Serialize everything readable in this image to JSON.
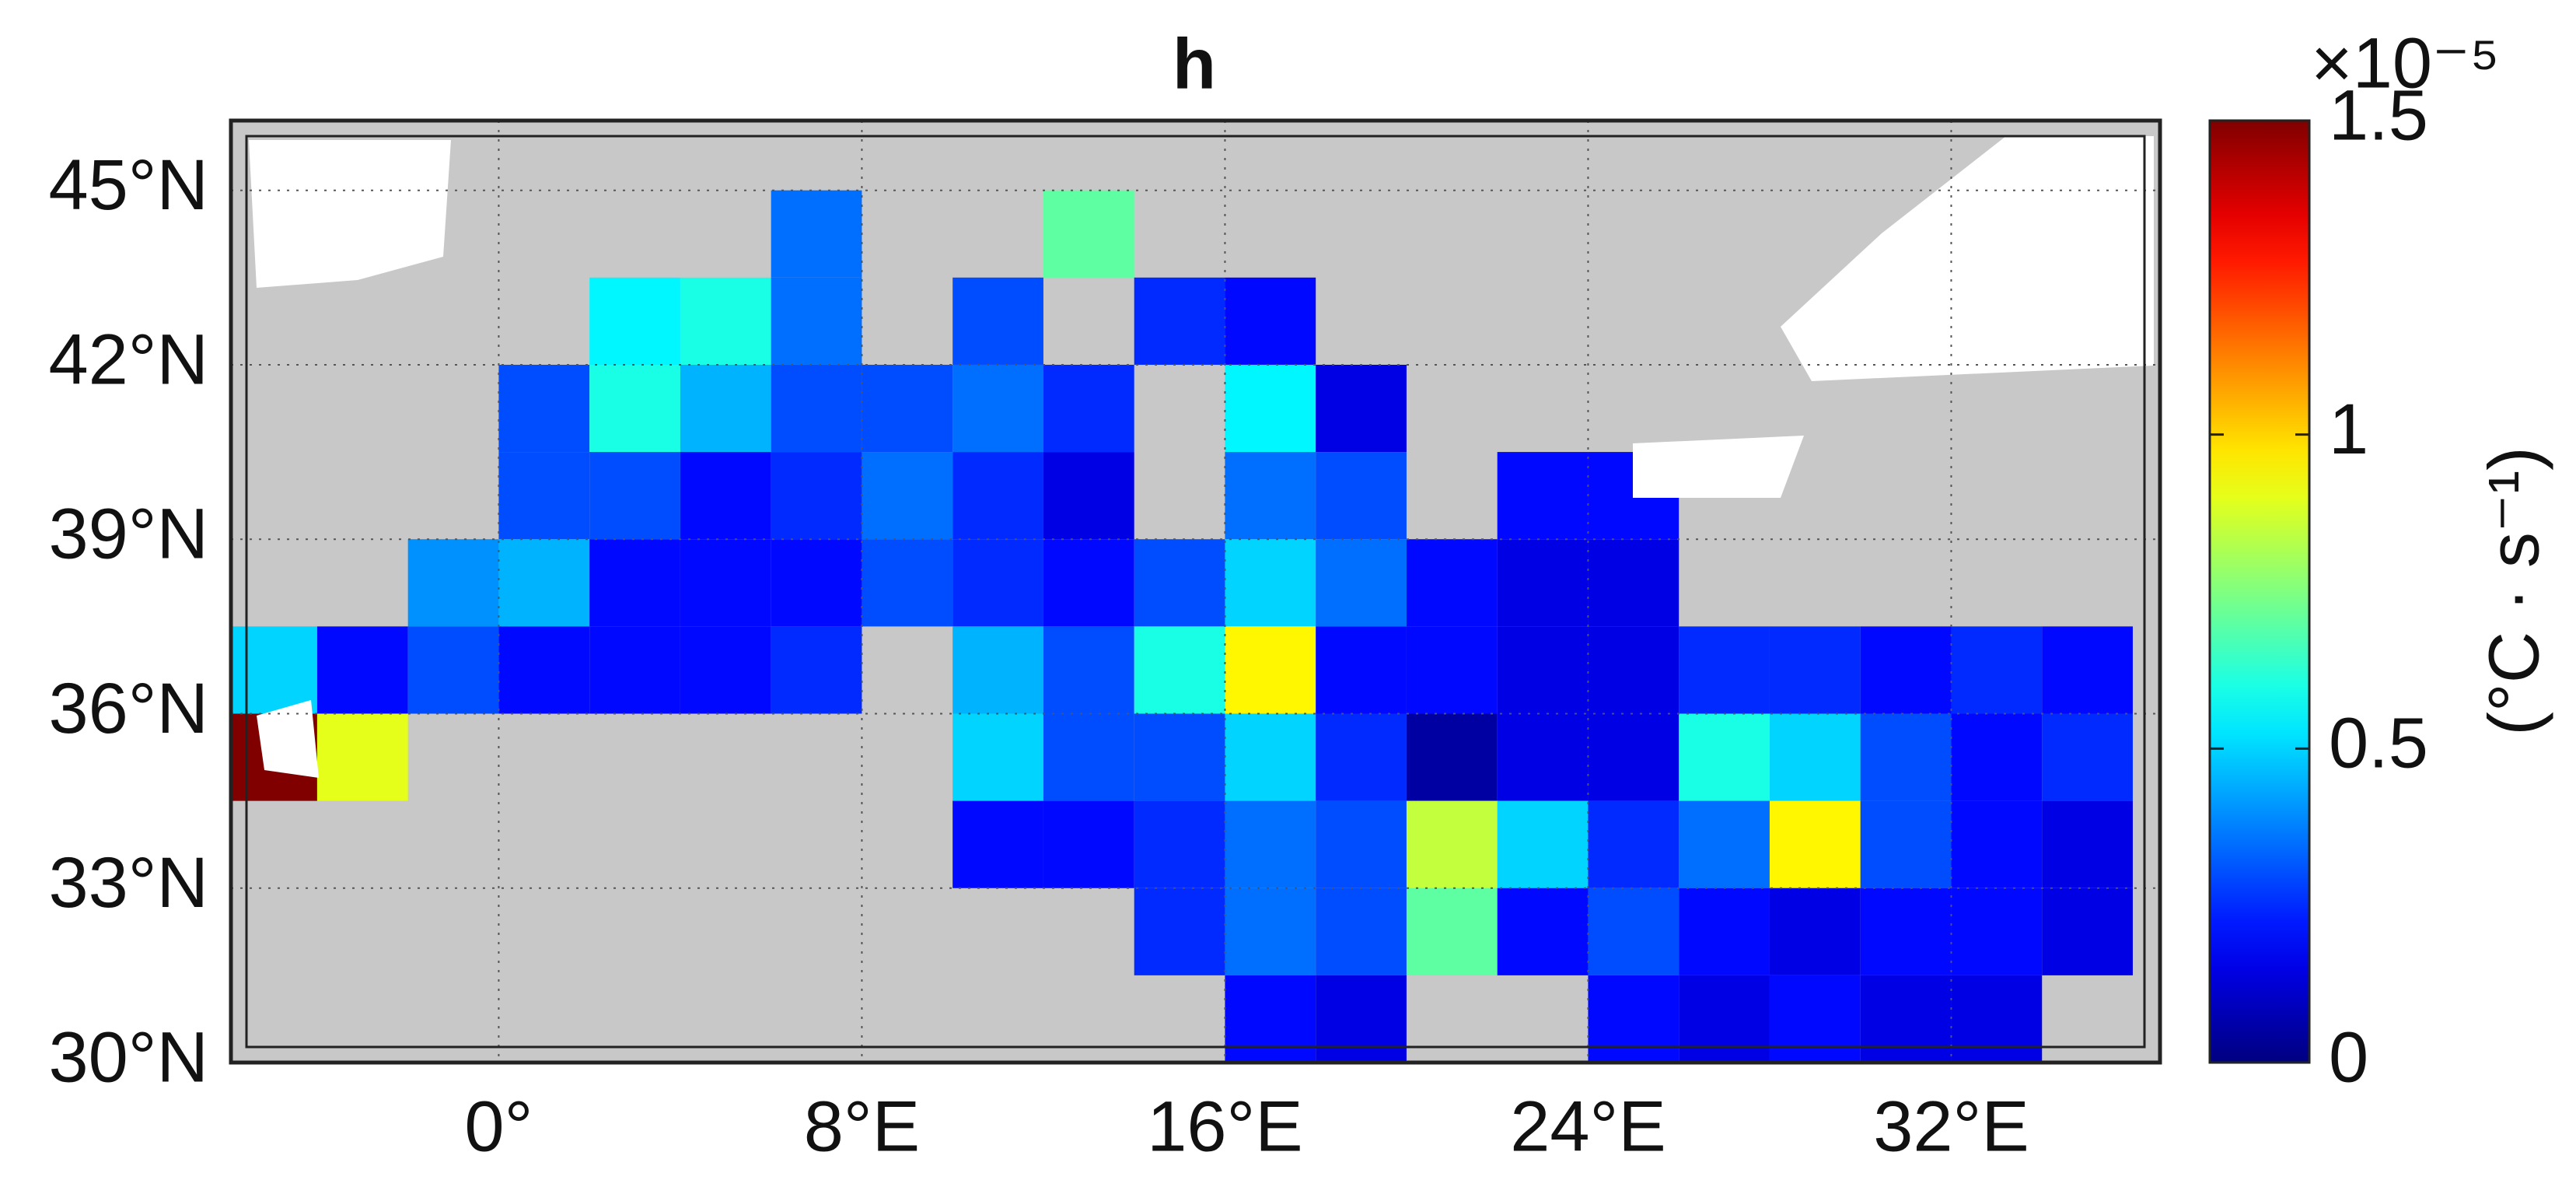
{
  "chart_data": {
    "type": "heatmap",
    "title": "h",
    "xlim": [
      -5.9,
      36.6
    ],
    "ylim": [
      30,
      46.2
    ],
    "xticks": [
      {
        "value": 0,
        "label": "0°"
      },
      {
        "value": 8,
        "label": "8°E"
      },
      {
        "value": 16,
        "label": "16°E"
      },
      {
        "value": 24,
        "label": "24°E"
      },
      {
        "value": 32,
        "label": "32°E"
      }
    ],
    "yticks": [
      {
        "value": 30,
        "label": "30°N"
      },
      {
        "value": 33,
        "label": "33°N"
      },
      {
        "value": 36,
        "label": "36°N"
      },
      {
        "value": 39,
        "label": "39°N"
      },
      {
        "value": 42,
        "label": "42°N"
      },
      {
        "value": 45,
        "label": "45°N"
      }
    ],
    "grid": true,
    "land_color": "#c8c8c8",
    "colormap": "jet",
    "x": [
      -5,
      -3,
      -1,
      1,
      3,
      5,
      7,
      9,
      11,
      13,
      15,
      17,
      19,
      21,
      23,
      25,
      27,
      29,
      31,
      33,
      35
    ],
    "y": [
      44.25,
      42.75,
      41.25,
      39.75,
      38.25,
      36.75,
      35.25,
      33.75,
      32.25,
      30.75
    ],
    "z": [
      [
        null,
        null,
        null,
        null,
        null,
        null,
        0.35,
        null,
        null,
        0.7,
        null,
        null,
        null,
        null,
        null,
        null,
        null,
        null,
        null,
        null,
        null
      ],
      [
        null,
        null,
        null,
        null,
        0.55,
        0.6,
        0.35,
        null,
        0.3,
        null,
        0.25,
        0.2,
        null,
        null,
        null,
        null,
        null,
        null,
        null,
        null,
        null
      ],
      [
        null,
        null,
        null,
        0.3,
        0.6,
        0.45,
        0.3,
        0.3,
        0.35,
        0.25,
        null,
        0.55,
        0.15,
        null,
        null,
        null,
        null,
        null,
        null,
        null,
        null
      ],
      [
        null,
        null,
        null,
        0.3,
        0.3,
        0.2,
        0.25,
        0.35,
        0.25,
        0.15,
        null,
        0.35,
        0.3,
        null,
        0.2,
        0.2,
        null,
        null,
        null,
        null,
        null
      ],
      [
        null,
        null,
        0.4,
        0.45,
        0.2,
        0.2,
        0.2,
        0.3,
        0.25,
        0.2,
        0.3,
        0.5,
        0.35,
        0.2,
        0.15,
        0.15,
        null,
        null,
        null,
        null,
        null
      ],
      [
        0.5,
        0.2,
        0.3,
        0.2,
        0.2,
        0.2,
        0.25,
        null,
        0.45,
        0.3,
        0.6,
        0.95,
        0.2,
        0.2,
        0.15,
        0.15,
        0.25,
        0.25,
        0.2,
        0.25,
        0.2
      ],
      [
        1.5,
        0.9,
        null,
        null,
        null,
        null,
        null,
        null,
        0.5,
        0.3,
        0.3,
        0.5,
        0.25,
        0.05,
        0.15,
        0.15,
        0.6,
        0.5,
        0.3,
        0.2,
        0.25
      ],
      [
        null,
        null,
        null,
        null,
        null,
        null,
        null,
        null,
        0.2,
        0.2,
        0.25,
        0.35,
        0.3,
        0.85,
        0.5,
        0.25,
        0.35,
        0.95,
        0.3,
        0.2,
        0.15
      ],
      [
        null,
        null,
        null,
        null,
        null,
        null,
        null,
        null,
        null,
        null,
        0.25,
        0.35,
        0.3,
        0.7,
        0.2,
        0.3,
        0.2,
        0.15,
        0.2,
        0.2,
        0.15
      ],
      [
        null,
        null,
        null,
        null,
        null,
        null,
        null,
        null,
        null,
        null,
        null,
        0.2,
        0.15,
        null,
        null,
        0.2,
        0.15,
        0.2,
        0.15,
        0.15,
        null
      ]
    ],
    "colorbar": {
      "lim": [
        0,
        1.5
      ],
      "ticks": [
        0,
        0.5,
        1,
        1.5
      ],
      "exponent_label": "×10⁻⁵",
      "label": "(°C · s⁻¹)"
    }
  }
}
